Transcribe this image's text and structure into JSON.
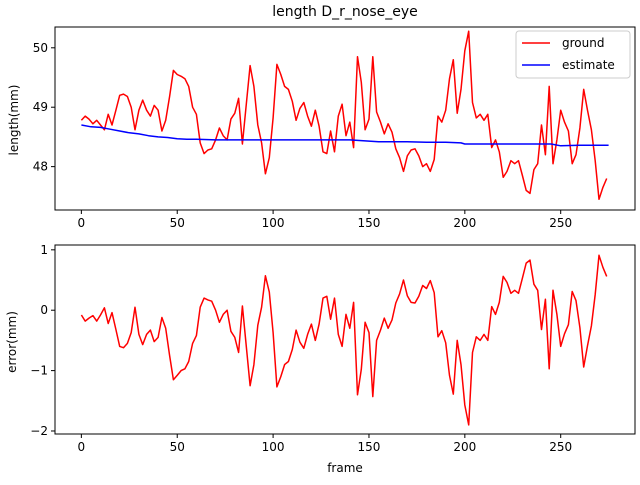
{
  "chart_data": [
    {
      "type": "line",
      "title": "length D_r_nose_eye",
      "xlabel": "",
      "ylabel": "length(mm)",
      "xlim": [
        -13.75,
        288.75
      ],
      "ylim": [
        47.27,
        50.35
      ],
      "xticks": [
        0,
        50,
        100,
        150,
        200,
        250
      ],
      "yticks": [
        48,
        49,
        50
      ],
      "grid": false,
      "legend": "top-right",
      "series": [
        {
          "name": "ground",
          "color": "#ff0000",
          "x": [
            0,
            2,
            4,
            6,
            8,
            10,
            12,
            14,
            16,
            18,
            20,
            22,
            24,
            26,
            28,
            30,
            32,
            34,
            36,
            38,
            40,
            42,
            44,
            46,
            48,
            50,
            52,
            54,
            56,
            58,
            60,
            62,
            64,
            66,
            68,
            70,
            72,
            74,
            76,
            78,
            80,
            82,
            84,
            86,
            88,
            90,
            92,
            94,
            96,
            98,
            100,
            102,
            104,
            106,
            108,
            110,
            112,
            114,
            116,
            118,
            120,
            122,
            124,
            126,
            128,
            130,
            132,
            134,
            136,
            138,
            140,
            142,
            144,
            146,
            148,
            150,
            152,
            154,
            156,
            158,
            160,
            162,
            164,
            166,
            168,
            170,
            172,
            174,
            176,
            178,
            180,
            182,
            184,
            186,
            188,
            190,
            192,
            194,
            196,
            198,
            200,
            202,
            204,
            206,
            208,
            210,
            212,
            214,
            216,
            218,
            220,
            222,
            224,
            226,
            228,
            230,
            232,
            234,
            236,
            238,
            240,
            242,
            244,
            246,
            248,
            250,
            252,
            254,
            256,
            258,
            260,
            262,
            264,
            266,
            268,
            270,
            272,
            274
          ],
          "values": [
            48.78,
            48.85,
            48.8,
            48.72,
            48.78,
            48.7,
            48.62,
            48.88,
            48.7,
            48.95,
            49.2,
            49.22,
            49.18,
            49.0,
            48.62,
            48.95,
            49.12,
            48.95,
            48.85,
            49.03,
            48.95,
            48.6,
            48.78,
            49.18,
            49.62,
            49.55,
            49.52,
            49.48,
            49.35,
            49.0,
            48.88,
            48.4,
            48.22,
            48.28,
            48.3,
            48.45,
            48.65,
            48.52,
            48.45,
            48.8,
            48.9,
            49.15,
            48.38,
            49.05,
            49.7,
            49.35,
            48.7,
            48.4,
            47.88,
            48.15,
            48.82,
            49.72,
            49.55,
            49.35,
            49.3,
            49.1,
            48.78,
            48.98,
            49.08,
            48.85,
            48.68,
            48.95,
            48.68,
            48.25,
            48.22,
            48.6,
            48.25,
            48.85,
            49.05,
            48.52,
            48.75,
            48.32,
            49.85,
            49.42,
            48.62,
            48.8,
            49.85,
            48.92,
            48.75,
            48.55,
            48.72,
            48.58,
            48.3,
            48.15,
            47.92,
            48.18,
            48.28,
            48.3,
            48.18,
            48.0,
            48.05,
            47.92,
            48.12,
            48.85,
            48.75,
            48.95,
            49.48,
            49.8,
            48.9,
            49.3,
            49.95,
            50.28,
            49.08,
            48.82,
            48.88,
            48.78,
            48.88,
            48.32,
            48.45,
            48.25,
            47.82,
            47.92,
            48.1,
            48.05,
            48.1,
            47.85,
            47.6,
            47.55,
            47.95,
            48.05,
            48.7,
            48.2,
            49.35,
            48.05,
            48.45,
            48.95,
            48.75,
            48.6,
            48.05,
            48.2,
            48.65,
            49.3,
            48.95,
            48.62,
            48.1,
            47.45,
            47.65,
            47.8
          ]
        },
        {
          "name": "estimate",
          "color": "#0000ff",
          "x": [
            0,
            5,
            10,
            15,
            20,
            25,
            30,
            35,
            40,
            45,
            50,
            55,
            60,
            70,
            80,
            90,
            100,
            110,
            120,
            130,
            140,
            145,
            150,
            155,
            160,
            170,
            180,
            190,
            198,
            200,
            210,
            220,
            230,
            240,
            245,
            250,
            260,
            270,
            275
          ],
          "values": [
            48.7,
            48.67,
            48.66,
            48.63,
            48.6,
            48.57,
            48.55,
            48.52,
            48.5,
            48.49,
            48.47,
            48.46,
            48.46,
            48.45,
            48.45,
            48.45,
            48.45,
            48.45,
            48.45,
            48.45,
            48.45,
            48.44,
            48.43,
            48.42,
            48.42,
            48.42,
            48.41,
            48.41,
            48.4,
            48.38,
            48.38,
            48.38,
            48.38,
            48.38,
            48.38,
            48.35,
            48.36,
            48.36,
            48.36
          ]
        }
      ]
    },
    {
      "type": "line",
      "title": "",
      "xlabel": "frame",
      "ylabel": "error(mm)",
      "xlim": [
        -13.75,
        288.75
      ],
      "ylim": [
        -2.05,
        1.08
      ],
      "xticks": [
        0,
        50,
        100,
        150,
        200,
        250
      ],
      "yticks": [
        -2,
        -1,
        0,
        1
      ],
      "grid": false,
      "legend": "none",
      "series": [
        {
          "name": "",
          "color": "#ff0000",
          "x": [
            0,
            2,
            4,
            6,
            8,
            10,
            12,
            14,
            16,
            18,
            20,
            22,
            24,
            26,
            28,
            30,
            32,
            34,
            36,
            38,
            40,
            42,
            44,
            46,
            48,
            50,
            52,
            54,
            56,
            58,
            60,
            62,
            64,
            66,
            68,
            70,
            72,
            74,
            76,
            78,
            80,
            82,
            84,
            86,
            88,
            90,
            92,
            94,
            96,
            98,
            100,
            102,
            104,
            106,
            108,
            110,
            112,
            114,
            116,
            118,
            120,
            122,
            124,
            126,
            128,
            130,
            132,
            134,
            136,
            138,
            140,
            142,
            144,
            146,
            148,
            150,
            152,
            154,
            156,
            158,
            160,
            162,
            164,
            166,
            168,
            170,
            172,
            174,
            176,
            178,
            180,
            182,
            184,
            186,
            188,
            190,
            192,
            194,
            196,
            198,
            200,
            202,
            204,
            206,
            208,
            210,
            212,
            214,
            216,
            218,
            220,
            222,
            224,
            226,
            228,
            230,
            232,
            234,
            236,
            238,
            240,
            242,
            244,
            246,
            248,
            250,
            252,
            254,
            256,
            258,
            260,
            262,
            264,
            266,
            268,
            270,
            272,
            274
          ],
          "values": [
            -0.08,
            -0.18,
            -0.13,
            -0.09,
            -0.18,
            -0.08,
            0.04,
            -0.22,
            -0.04,
            -0.32,
            -0.6,
            -0.62,
            -0.55,
            -0.37,
            0.05,
            -0.4,
            -0.57,
            -0.4,
            -0.33,
            -0.52,
            -0.45,
            -0.12,
            -0.3,
            -0.75,
            -1.15,
            -1.08,
            -1.0,
            -0.97,
            -0.85,
            -0.55,
            -0.42,
            0.05,
            0.2,
            0.17,
            0.15,
            -0.0,
            -0.2,
            -0.07,
            0.0,
            -0.35,
            -0.45,
            -0.7,
            0.07,
            -0.6,
            -1.25,
            -0.9,
            -0.25,
            0.05,
            0.57,
            0.3,
            -0.37,
            -1.27,
            -1.1,
            -0.9,
            -0.85,
            -0.65,
            -0.33,
            -0.53,
            -0.63,
            -0.4,
            -0.23,
            -0.5,
            -0.23,
            0.2,
            0.23,
            -0.15,
            0.2,
            -0.4,
            -0.6,
            -0.07,
            -0.3,
            0.13,
            -1.4,
            -0.98,
            -0.2,
            -0.37,
            -1.43,
            -0.5,
            -0.33,
            -0.13,
            -0.3,
            -0.16,
            0.12,
            0.27,
            0.5,
            0.24,
            0.13,
            0.12,
            0.23,
            0.41,
            0.36,
            0.49,
            0.29,
            -0.44,
            -0.34,
            -0.54,
            -1.08,
            -1.39,
            -0.5,
            -0.9,
            -1.57,
            -1.9,
            -0.7,
            -0.44,
            -0.5,
            -0.4,
            -0.5,
            0.06,
            -0.07,
            0.13,
            0.56,
            0.46,
            0.28,
            0.33,
            0.28,
            0.53,
            0.78,
            0.83,
            0.43,
            0.33,
            -0.32,
            0.18,
            -0.97,
            0.33,
            -0.07,
            -0.6,
            -0.39,
            -0.24,
            0.31,
            0.16,
            -0.29,
            -0.94,
            -0.59,
            -0.26,
            0.26,
            0.91,
            0.71,
            0.56
          ]
        }
      ]
    }
  ]
}
